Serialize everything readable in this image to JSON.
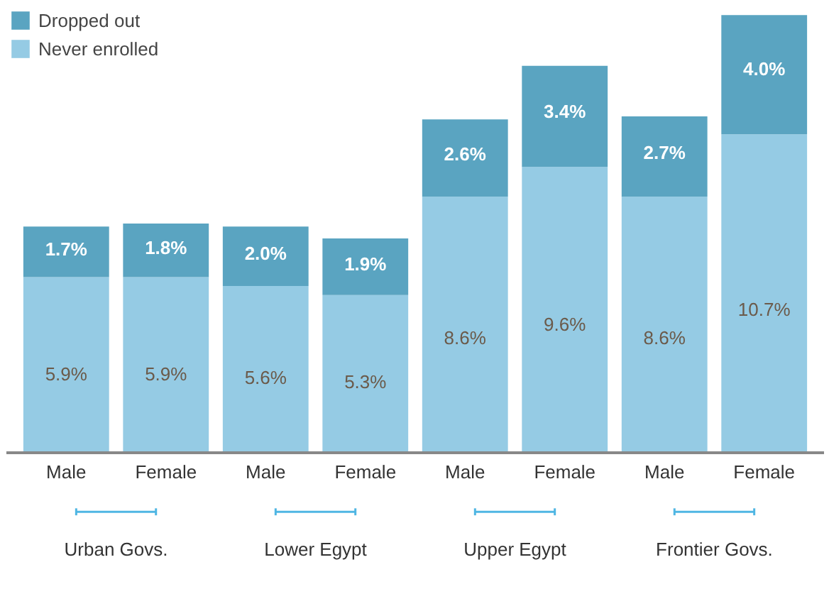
{
  "chart_data": {
    "type": "bar",
    "stacked": true,
    "legend": "top left",
    "categories": [
      "Male",
      "Female",
      "Male",
      "Female",
      "Male",
      "Female",
      "Male",
      "Female"
    ],
    "series": [
      {
        "name": "Never enrolled",
        "color": "#95cbe4",
        "values": [
          5.9,
          5.9,
          5.6,
          5.3,
          8.6,
          9.6,
          8.6,
          10.7
        ],
        "value_labels": [
          "5.9%",
          "5.9%",
          "5.6%",
          "5.3%",
          "8.6%",
          "9.6%",
          "8.6%",
          "10.7%"
        ]
      },
      {
        "name": "Dropped out",
        "color": "#5aa4c1",
        "values": [
          1.7,
          1.8,
          2.0,
          1.9,
          2.6,
          3.4,
          2.7,
          4.0
        ],
        "value_labels": [
          "1.7%",
          "1.8%",
          "2.0%",
          "1.9%",
          "2.6%",
          "3.4%",
          "2.7%",
          "4.0%"
        ]
      }
    ],
    "annotations": [
      "Urban Govs.",
      "Lower Egypt",
      "Upper Egypt",
      "Frontier Govs."
    ]
  }
}
